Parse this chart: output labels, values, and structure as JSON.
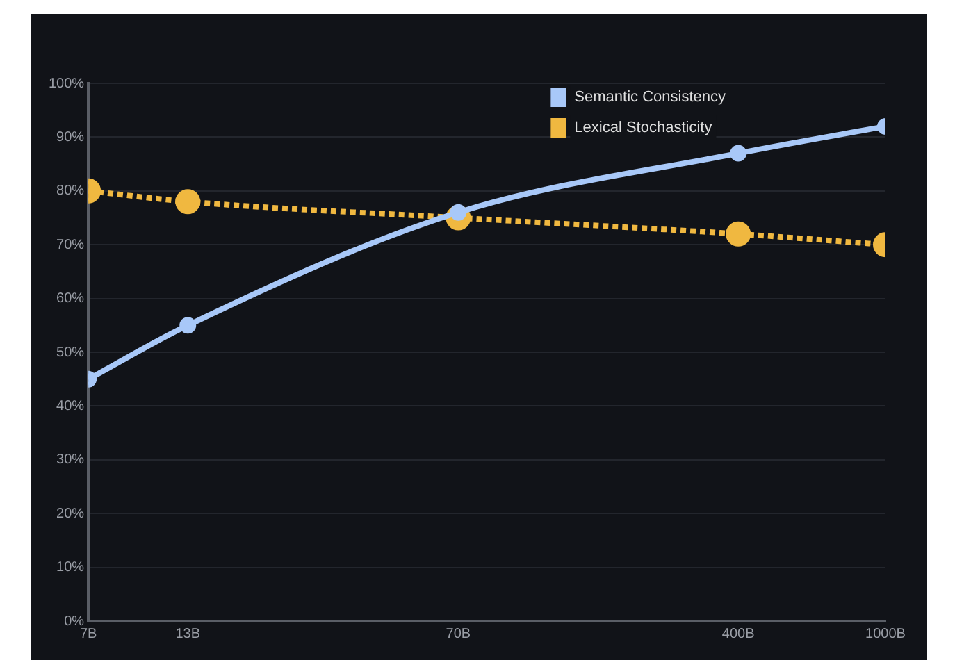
{
  "chart_data": {
    "type": "line",
    "x": [
      7,
      13,
      70,
      400,
      1000
    ],
    "log": "x",
    "xlim": [
      7,
      1000
    ],
    "xticks": [
      {
        "value": 7,
        "label": "7B"
      },
      {
        "value": 13,
        "label": "13B"
      },
      {
        "value": 70,
        "label": "70B"
      },
      {
        "value": 400,
        "label": "400B"
      },
      {
        "value": 1000,
        "label": "1000B"
      }
    ],
    "ylim": [
      0,
      100
    ],
    "yticks": [
      {
        "value": 0,
        "label": "0%"
      },
      {
        "value": 10,
        "label": "10%"
      },
      {
        "value": 20,
        "label": "20%"
      },
      {
        "value": 30,
        "label": "30%"
      },
      {
        "value": 40,
        "label": "40%"
      },
      {
        "value": 50,
        "label": "50%"
      },
      {
        "value": 60,
        "label": "60%"
      },
      {
        "value": 70,
        "label": "70%"
      },
      {
        "value": 80,
        "label": "80%"
      },
      {
        "value": 90,
        "label": "90%"
      },
      {
        "value": 100,
        "label": "100%"
      }
    ],
    "series": [
      {
        "name": "Semantic Consistency",
        "color": "#a8c8f8",
        "values": [
          45,
          55,
          76,
          87,
          92
        ],
        "line_style": "solid"
      },
      {
        "name": "Lexical Stochasticity",
        "color": "#f0b840",
        "values": [
          80,
          78,
          75,
          72,
          70
        ],
        "line_style": "dotted"
      }
    ],
    "grid": "y",
    "legend": "top right",
    "marker": "circle"
  }
}
